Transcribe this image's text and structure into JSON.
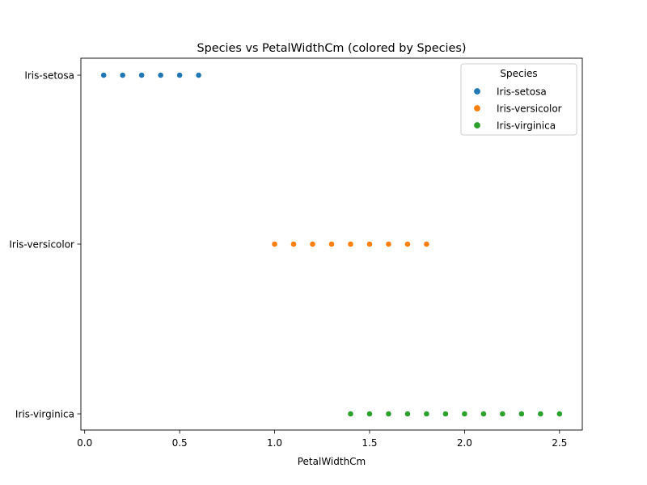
{
  "chart_data": {
    "type": "scatter",
    "title": "Species vs PetalWidthCm (colored by Species)",
    "xlabel": "PetalWidthCm",
    "ylabel": "",
    "xlim": [
      -0.02,
      2.62
    ],
    "x_ticks": [
      0.0,
      0.5,
      1.0,
      1.5,
      2.0,
      2.5
    ],
    "x_tick_labels": [
      "0.0",
      "0.5",
      "1.0",
      "1.5",
      "2.0",
      "2.5"
    ],
    "y_categories": [
      "Iris-setosa",
      "Iris-versicolor",
      "Iris-virginica"
    ],
    "grid": false,
    "legend": {
      "title": "Species",
      "placement": "top-right"
    },
    "series": [
      {
        "name": "Iris-setosa",
        "color": "#1f77b4",
        "y": "Iris-setosa",
        "x": [
          0.1,
          0.2,
          0.3,
          0.4,
          0.5,
          0.6
        ]
      },
      {
        "name": "Iris-versicolor",
        "color": "#ff7f0e",
        "y": "Iris-versicolor",
        "x": [
          1.0,
          1.1,
          1.2,
          1.3,
          1.4,
          1.5,
          1.6,
          1.7,
          1.8
        ]
      },
      {
        "name": "Iris-virginica",
        "color": "#2ca02c",
        "y": "Iris-virginica",
        "x": [
          1.4,
          1.5,
          1.6,
          1.7,
          1.8,
          1.9,
          2.0,
          2.1,
          2.2,
          2.3,
          2.4,
          2.5
        ]
      }
    ]
  }
}
